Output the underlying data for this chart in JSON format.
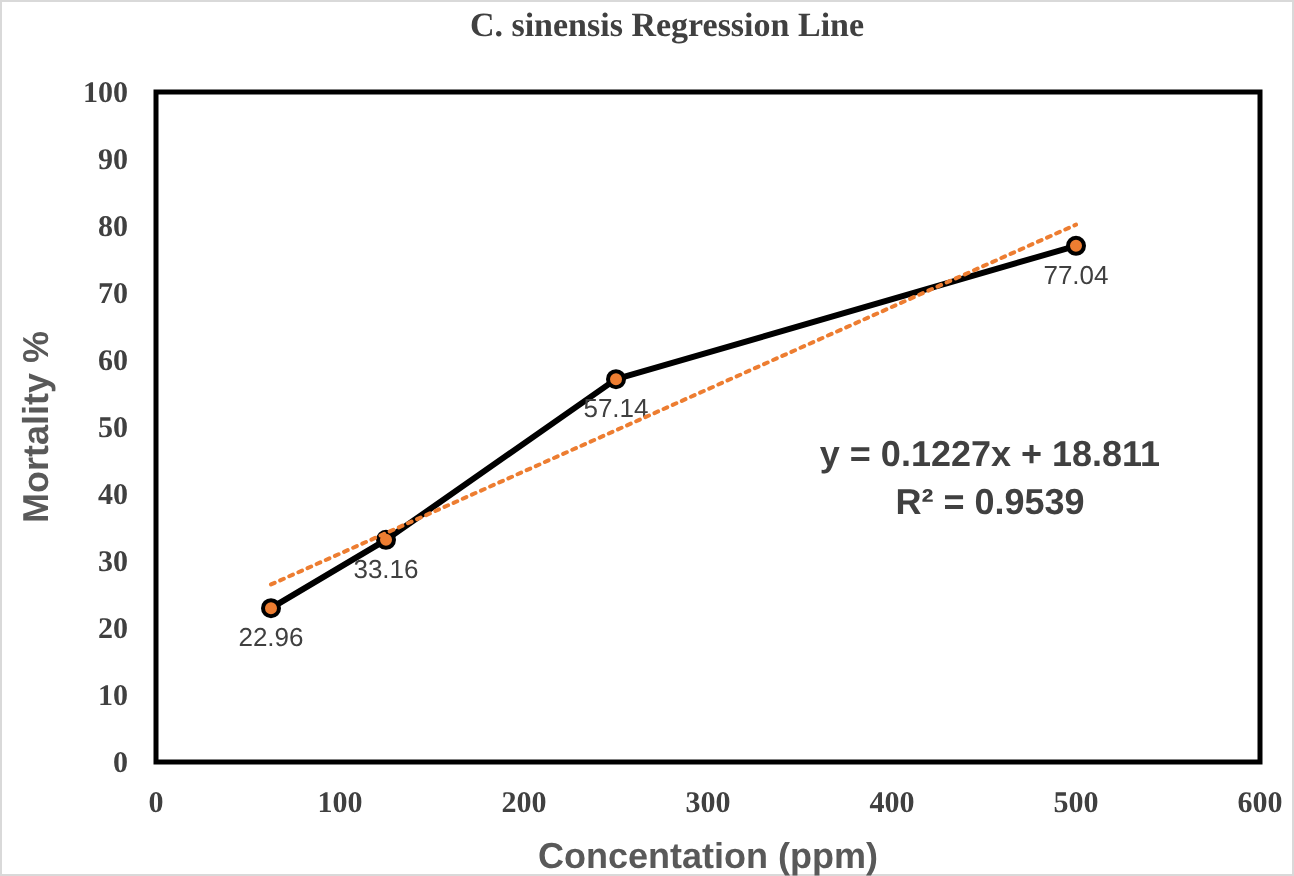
{
  "chart_data": {
    "type": "line",
    "title": "C. sinensis Regression Line",
    "xlabel": "Concentation (ppm)",
    "ylabel": "Mortality %",
    "xlim": [
      0,
      600
    ],
    "xticks": [
      0,
      100,
      200,
      300,
      400,
      500,
      600
    ],
    "ylim": [
      0,
      100
    ],
    "yticks": [
      0,
      10,
      20,
      30,
      40,
      50,
      60,
      70,
      80,
      90,
      100
    ],
    "grid": false,
    "series": [
      {
        "color": "#000000",
        "marker": "circle",
        "line_style": "solid",
        "x": [
          62.5,
          125,
          250,
          500
        ],
        "values": [
          22.96,
          33.16,
          57.14,
          77.04
        ],
        "value_labels": [
          "22.96",
          "33.16",
          "57.14",
          "77.04"
        ]
      },
      {
        "color": "#ed7d31",
        "marker": "none",
        "line_style": "dotted",
        "x": [
          62.5,
          500
        ],
        "values": [
          26.5,
          80.2
        ]
      }
    ],
    "annotations": [
      "y = 0.1227x + 18.811",
      "R² = 0.9539"
    ]
  }
}
